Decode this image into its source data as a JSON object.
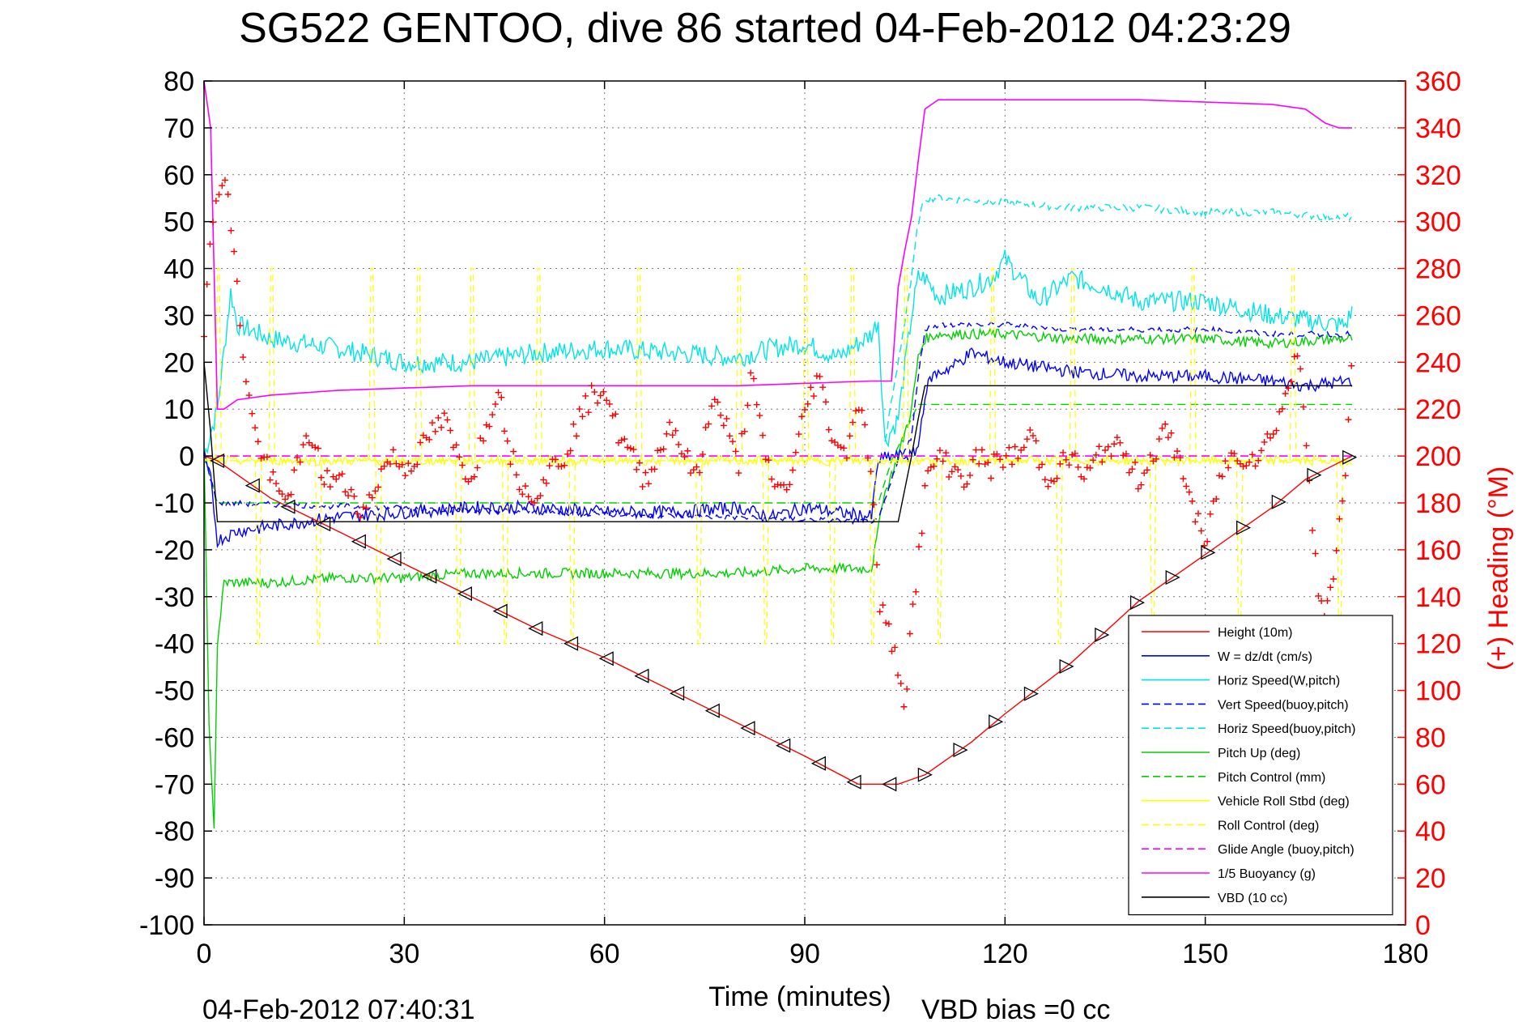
{
  "chart_data": {
    "type": "line",
    "title": "SG522 GENTOO, dive 86 started 04-Feb-2012 04:23:29",
    "xlabel": "Time (minutes)",
    "ylabel_right": "(+) Heading (°M)",
    "footer_left": "04-Feb-2012 07:40:31",
    "footer_right": "VBD bias =0 cc",
    "xlim": [
      0,
      180
    ],
    "ylim_left": [
      -100,
      80
    ],
    "ylim_right": [
      0,
      360
    ],
    "x_ticks": [
      "0",
      "30",
      "60",
      "90",
      "120",
      "150",
      "180"
    ],
    "y_left_ticks": [
      "80",
      "70",
      "60",
      "50",
      "40",
      "30",
      "20",
      "10",
      "0",
      "-10",
      "-20",
      "-30",
      "-40",
      "-50",
      "-60",
      "-70",
      "-80",
      "-90",
      "-100"
    ],
    "y_right_ticks": [
      "360",
      "340",
      "320",
      "300",
      "280",
      "260",
      "240",
      "220",
      "200",
      "180",
      "160",
      "140",
      "120",
      "100",
      "80",
      "60",
      "40",
      "20",
      "0"
    ],
    "grid": true,
    "legend_position": "bottom-right",
    "colors": {
      "height": "#ff0000",
      "w": "#0000ff",
      "horiz_speed": "#00e5e5",
      "pitch": "#00d000",
      "roll": "#ffff00",
      "glide": "#ff00ff",
      "buoyancy": "#ff00ff",
      "vbd": "#000000",
      "heading": "#ff0000",
      "right_axis": "#ff0000"
    },
    "legend": [
      {
        "label": "Height (10m)",
        "color": "#ff0000",
        "dash": false
      },
      {
        "label": "W = dz/dt (cm/s)",
        "color": "#0000ff",
        "dash": false
      },
      {
        "label": "Horiz Speed(W,pitch)",
        "color": "#00e5e5",
        "dash": false
      },
      {
        "label": "Vert Speed(buoy,pitch)",
        "color": "#0000ff",
        "dash": true
      },
      {
        "label": "Horiz Speed(buoy,pitch)",
        "color": "#00e5e5",
        "dash": true
      },
      {
        "label": "Pitch Up (deg)",
        "color": "#00d000",
        "dash": false
      },
      {
        "label": "Pitch Control (mm)",
        "color": "#00d000",
        "dash": true
      },
      {
        "label": "Vehicle Roll Stbd (deg)",
        "color": "#ffff00",
        "dash": false
      },
      {
        "label": "Roll Control (deg)",
        "color": "#ffff00",
        "dash": true
      },
      {
        "label": "Glide Angle (buoy,pitch)",
        "color": "#ff00ff",
        "dash": true
      },
      {
        "label": "1/5 Buoyancy (g)",
        "color": "#ff00ff",
        "dash": false
      },
      {
        "label": "VBD (10 cc)",
        "color": "#000000",
        "dash": false
      }
    ],
    "series": [
      {
        "key": "height",
        "x": [
          0,
          2,
          10,
          20,
          30,
          40,
          50,
          60,
          70,
          80,
          90,
          98,
          100,
          104,
          106,
          108,
          110,
          115,
          120,
          130,
          140,
          150,
          160,
          165,
          172
        ],
        "y": [
          0,
          -1,
          -9,
          -16,
          -23,
          -30,
          -37,
          -43,
          -50,
          -57,
          -64,
          -70,
          -70,
          -70,
          -69,
          -68,
          -66,
          -61,
          -55,
          -44,
          -31,
          -21,
          -11,
          -5,
          0
        ]
      },
      {
        "key": "w",
        "x": [
          0,
          1,
          2,
          5,
          10,
          20,
          30,
          40,
          50,
          60,
          70,
          80,
          85,
          90,
          95,
          100,
          101,
          103,
          106,
          107,
          108,
          109,
          112,
          115,
          120,
          125,
          130,
          140,
          150,
          160,
          165,
          172
        ],
        "y": [
          0,
          -5,
          -18,
          -16,
          -15,
          -13,
          -12,
          -11,
          -11,
          -12,
          -12,
          -11,
          -13,
          -11,
          -12,
          -13,
          -1,
          0,
          0,
          2,
          13,
          17,
          19,
          22,
          20,
          19,
          18,
          17,
          17,
          16,
          15,
          16
        ]
      },
      {
        "key": "horiz_speed",
        "x": [
          0,
          2,
          4,
          5,
          10,
          20,
          30,
          40,
          50,
          60,
          70,
          80,
          85,
          90,
          95,
          100,
          101,
          102,
          104,
          106,
          107,
          108,
          110,
          115,
          118,
          120,
          125,
          130,
          135,
          140,
          150,
          160,
          165,
          170,
          171,
          172
        ],
        "y": [
          0,
          10,
          35,
          28,
          25,
          23,
          20,
          20,
          22,
          23,
          22,
          21,
          23,
          24,
          21,
          26,
          29,
          3,
          8,
          30,
          38,
          38,
          34,
          36,
          38,
          42,
          33,
          38,
          36,
          33,
          33,
          30,
          29,
          28,
          28,
          31
        ]
      },
      {
        "key": "vert_buoy",
        "x": [
          0,
          2,
          101,
          104,
          106,
          107,
          108,
          110,
          120,
          130,
          140,
          150,
          160,
          170,
          172
        ],
        "y": [
          0,
          -10,
          -14,
          -1,
          4,
          17,
          27,
          28,
          28,
          27,
          27,
          27,
          26,
          26,
          26
        ]
      },
      {
        "key": "horiz_buoy",
        "x": [
          102,
          104,
          106,
          107,
          108,
          110,
          120,
          130,
          140,
          150,
          160,
          168,
          172
        ],
        "y": [
          3,
          20,
          38,
          50,
          55,
          55,
          54,
          53,
          53,
          52,
          52,
          51,
          51
        ]
      },
      {
        "key": "pitch",
        "x": [
          0,
          0.8,
          1.5,
          2,
          3,
          5,
          10,
          20,
          30,
          40,
          50,
          60,
          70,
          80,
          90,
          100,
          101,
          101.5,
          102,
          104,
          106,
          107,
          108,
          110,
          120,
          130,
          140,
          150,
          160,
          170,
          172
        ],
        "y": [
          0,
          -60,
          -80,
          -40,
          -27,
          -27,
          -27,
          -26,
          -26,
          -25,
          -25,
          -25,
          -25,
          -25,
          -24,
          -24,
          -16,
          -10,
          -8,
          0,
          10,
          21,
          25,
          26,
          26,
          25,
          25,
          25,
          24,
          25,
          25
        ]
      },
      {
        "key": "pitch_control",
        "x": [
          0,
          2,
          101,
          103,
          106,
          107,
          108,
          110,
          172
        ],
        "y": [
          0,
          -10,
          -10,
          -1,
          8,
          11,
          11,
          11,
          11
        ]
      },
      {
        "key": "roll_control",
        "x": [
          0,
          172
        ],
        "y": [
          -1,
          -1
        ]
      },
      {
        "key": "glide",
        "x": [
          0,
          172
        ],
        "y": [
          0,
          0
        ]
      },
      {
        "key": "buoyancy",
        "x": [
          0,
          1,
          2,
          3,
          5,
          10,
          20,
          40,
          60,
          80,
          100,
          103,
          104,
          105,
          106,
          107,
          108,
          110,
          120,
          140,
          160,
          165,
          168,
          170,
          172
        ],
        "y": [
          80,
          70,
          10,
          10,
          12,
          13,
          14,
          15,
          15,
          15,
          16,
          16,
          36,
          44,
          51,
          63,
          74,
          76,
          76,
          76,
          75,
          74,
          71,
          70,
          70
        ]
      },
      {
        "key": "vbd",
        "x": [
          0,
          1,
          2,
          100,
          104,
          106,
          107,
          108,
          110,
          120,
          160,
          172
        ],
        "y": [
          20,
          5,
          -14,
          -14,
          -14,
          0,
          8,
          15,
          15,
          15,
          15,
          15
        ]
      }
    ],
    "roll_spikes_x": [
      2,
      8,
      10,
      17,
      25,
      26,
      32,
      38,
      40,
      45,
      50,
      55,
      65,
      74,
      80,
      84,
      90,
      94,
      97,
      100,
      105,
      110,
      118,
      128,
      130,
      142,
      148,
      155,
      163,
      170
    ],
    "heading_samples": {
      "t": [
        0,
        1,
        2,
        3,
        4,
        5,
        6,
        7,
        8,
        9,
        10,
        11,
        12,
        14,
        16,
        18,
        20,
        22,
        24,
        26,
        28,
        30,
        32,
        34,
        36,
        38,
        40,
        42,
        44,
        46,
        48,
        50,
        52,
        54,
        56,
        58,
        60,
        62,
        64,
        66,
        68,
        70,
        72,
        74,
        76,
        78,
        80,
        82,
        84,
        86,
        88,
        90,
        92,
        94,
        96,
        98,
        99,
        100,
        101,
        102,
        103,
        104,
        105,
        106,
        107,
        108,
        109,
        110,
        112,
        114,
        116,
        118,
        120,
        122,
        124,
        126,
        128,
        130,
        132,
        134,
        136,
        138,
        140,
        142,
        144,
        146,
        148,
        150,
        152,
        154,
        156,
        158,
        160,
        162,
        164,
        165,
        166,
        167,
        168,
        169,
        170,
        171,
        172
      ],
      "heading": [
        255,
        290,
        315,
        320,
        300,
        270,
        240,
        220,
        205,
        200,
        190,
        185,
        180,
        195,
        210,
        190,
        190,
        185,
        175,
        190,
        200,
        195,
        200,
        210,
        215,
        200,
        190,
        210,
        230,
        200,
        185,
        185,
        195,
        200,
        215,
        225,
        230,
        210,
        200,
        190,
        200,
        215,
        200,
        190,
        225,
        215,
        195,
        235,
        200,
        185,
        190,
        220,
        235,
        210,
        200,
        225,
        210,
        195,
        140,
        130,
        120,
        110,
        95,
        130,
        155,
        185,
        195,
        200,
        195,
        190,
        200,
        195,
        200,
        200,
        210,
        190,
        195,
        200,
        190,
        200,
        205,
        200,
        190,
        200,
        210,
        200,
        180,
        160,
        190,
        200,
        200,
        200,
        210,
        225,
        245,
        215,
        175,
        140,
        130,
        145,
        170,
        195,
        240
      ]
    }
  }
}
